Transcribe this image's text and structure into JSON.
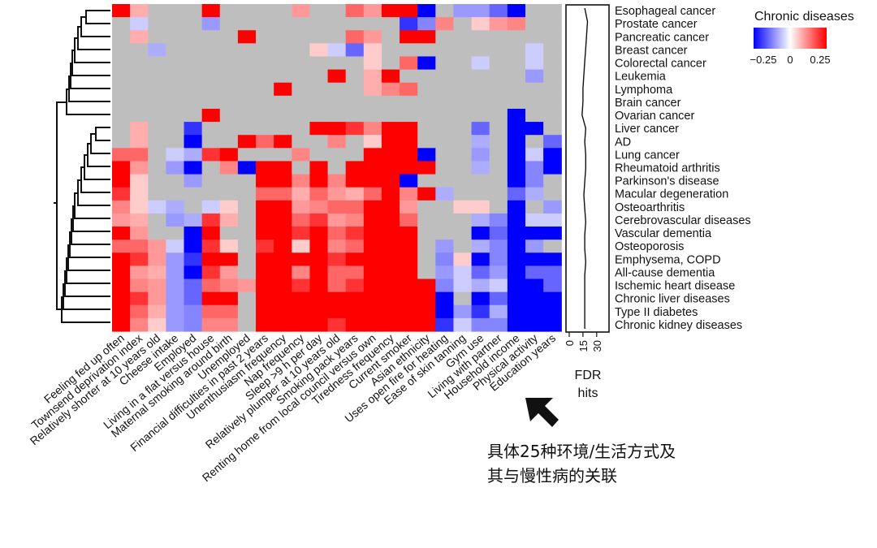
{
  "chart_data": {
    "type": "heatmap",
    "rows": [
      "Esophageal cancer",
      "Prostate cancer",
      "Pancreatic cancer",
      "Breast cancer",
      "Colorectal cancer",
      "Leukemia",
      "Lymphoma",
      "Brain cancer",
      "Ovarian cancer",
      "Liver cancer",
      "AD",
      "Lung cancer",
      "Rheumatoid arthritis",
      "Parkinson's disease",
      "Macular degeneration",
      "Osteoarthritis",
      "Cerebrovascular diseases",
      "Vascular dementia",
      "Osteoporosis",
      "Emphysema, COPD",
      "All-cause dementia",
      "Ischemic heart disease",
      "Chronic liver diseases",
      "Type II diabetes",
      "Chronic kidney diseases"
    ],
    "columns": [
      "Feeling fed up often",
      "Townsend deprivation index",
      "Relatively shorter at 10 years old",
      "Cheese intake",
      "Employed",
      "Living in a flat versus house",
      "Maternal smoking around birth",
      "Unemployed",
      "Financial difficulties in past 2 years",
      "Unenthusiasm frequency",
      "Nap frequency",
      "Sleep >9 h per day",
      "Relatively plumper at 10 years old",
      "Smoking pack years",
      "Renting home from local council versus own",
      "Tiredness frequency",
      "Current smoker",
      "Asian ethnicity",
      "Uses open fire for heating",
      "Ease of skin tanning",
      "Gym use",
      "Living with partner",
      "Household income",
      "Physical activity",
      "Education years"
    ],
    "values": [
      [
        0.25,
        0.08,
        null,
        null,
        null,
        0.25,
        null,
        null,
        null,
        null,
        0.1,
        null,
        null,
        0.15,
        0.1,
        0.25,
        0.25,
        -0.25,
        null,
        -0.1,
        -0.1,
        -0.15,
        -0.25,
        null,
        null
      ],
      [
        null,
        -0.05,
        null,
        null,
        null,
        -0.1,
        null,
        null,
        null,
        null,
        null,
        null,
        null,
        null,
        null,
        null,
        -0.2,
        -0.12,
        0.12,
        null,
        0.05,
        0.1,
        0.12,
        null,
        null
      ],
      [
        null,
        0.08,
        null,
        null,
        null,
        null,
        null,
        0.25,
        null,
        null,
        null,
        null,
        null,
        0.15,
        0.1,
        null,
        0.25,
        0.25,
        null,
        null,
        null,
        null,
        null,
        null,
        null
      ],
      [
        null,
        null,
        -0.08,
        null,
        null,
        null,
        null,
        null,
        null,
        null,
        null,
        0.05,
        -0.05,
        -0.15,
        0.05,
        null,
        null,
        null,
        null,
        null,
        null,
        null,
        null,
        -0.05,
        null
      ],
      [
        null,
        null,
        null,
        null,
        null,
        null,
        null,
        null,
        null,
        null,
        null,
        null,
        null,
        null,
        0.05,
        null,
        0.15,
        -0.25,
        null,
        null,
        -0.05,
        null,
        null,
        -0.05,
        null
      ],
      [
        null,
        null,
        null,
        null,
        null,
        null,
        null,
        null,
        null,
        null,
        null,
        null,
        0.25,
        null,
        0.08,
        0.25,
        null,
        null,
        null,
        null,
        null,
        null,
        null,
        -0.1,
        null
      ],
      [
        null,
        null,
        null,
        null,
        null,
        null,
        null,
        null,
        null,
        0.25,
        null,
        null,
        null,
        null,
        0.08,
        0.12,
        0.15,
        null,
        null,
        null,
        null,
        null,
        null,
        null,
        null
      ],
      [
        null,
        null,
        null,
        null,
        null,
        null,
        null,
        null,
        null,
        null,
        null,
        null,
        null,
        null,
        null,
        null,
        null,
        null,
        null,
        null,
        null,
        null,
        null,
        null,
        null
      ],
      [
        null,
        null,
        null,
        null,
        null,
        0.25,
        null,
        null,
        null,
        null,
        null,
        null,
        null,
        null,
        null,
        null,
        null,
        null,
        null,
        null,
        null,
        null,
        -0.25,
        null,
        null
      ],
      [
        null,
        0.08,
        null,
        null,
        -0.2,
        null,
        null,
        null,
        null,
        null,
        null,
        0.25,
        0.25,
        0.2,
        0.12,
        0.25,
        0.25,
        null,
        null,
        null,
        -0.15,
        null,
        -0.25,
        -0.25,
        null
      ],
      [
        null,
        0.08,
        null,
        null,
        -0.25,
        null,
        null,
        0.25,
        0.15,
        0.25,
        null,
        null,
        0.12,
        null,
        0.05,
        0.25,
        0.25,
        null,
        null,
        null,
        -0.08,
        null,
        -0.25,
        null,
        -0.15
      ],
      [
        0.15,
        0.15,
        null,
        -0.05,
        -0.08,
        0.2,
        0.25,
        null,
        null,
        null,
        0.12,
        null,
        null,
        null,
        0.25,
        0.25,
        0.25,
        -0.25,
        null,
        null,
        -0.1,
        null,
        -0.25,
        -0.05,
        -0.25
      ],
      [
        0.25,
        0.1,
        null,
        -0.1,
        -0.25,
        null,
        0.12,
        -0.25,
        0.25,
        0.25,
        null,
        0.25,
        null,
        0.25,
        0.25,
        0.25,
        0.25,
        0.25,
        null,
        null,
        -0.08,
        null,
        -0.25,
        -0.12,
        -0.25
      ],
      [
        0.25,
        0.05,
        null,
        null,
        -0.1,
        null,
        null,
        null,
        0.25,
        0.25,
        0.12,
        0.25,
        0.12,
        0.25,
        0.25,
        0.25,
        -0.25,
        null,
        null,
        null,
        null,
        null,
        -0.25,
        -0.12,
        null
      ],
      [
        0.2,
        0.05,
        null,
        null,
        null,
        null,
        null,
        null,
        0.15,
        0.15,
        0.08,
        0.15,
        0.1,
        0.08,
        0.15,
        0.25,
        0.12,
        0.25,
        -0.08,
        null,
        null,
        null,
        -0.15,
        -0.08,
        null
      ],
      [
        0.12,
        0.05,
        -0.05,
        -0.08,
        null,
        -0.05,
        0.05,
        null,
        0.25,
        0.25,
        0.1,
        0.12,
        0.15,
        0.15,
        0.25,
        0.25,
        0.1,
        null,
        null,
        0.05,
        0.05,
        null,
        -0.25,
        null,
        -0.1
      ],
      [
        0.1,
        0.08,
        null,
        -0.1,
        -0.08,
        0.2,
        0.08,
        null,
        0.25,
        0.25,
        0.15,
        0.2,
        0.1,
        0.12,
        0.25,
        0.25,
        0.15,
        null,
        null,
        null,
        -0.08,
        -0.12,
        -0.25,
        -0.05,
        -0.05
      ],
      [
        0.25,
        0.1,
        null,
        null,
        -0.25,
        0.25,
        null,
        null,
        0.25,
        0.25,
        0.2,
        0.25,
        0.15,
        0.2,
        0.25,
        0.25,
        0.25,
        null,
        null,
        null,
        -0.25,
        -0.15,
        -0.25,
        -0.25,
        -0.25
      ],
      [
        0.15,
        0.15,
        0.1,
        -0.05,
        -0.25,
        0.2,
        0.05,
        null,
        0.2,
        0.25,
        0.05,
        0.25,
        0.12,
        0.15,
        0.25,
        0.25,
        0.25,
        null,
        -0.1,
        null,
        -0.08,
        -0.12,
        -0.25,
        -0.1,
        null
      ],
      [
        0.25,
        0.2,
        0.1,
        -0.1,
        -0.2,
        0.25,
        0.25,
        null,
        0.25,
        0.25,
        0.25,
        0.25,
        0.2,
        0.25,
        0.25,
        0.25,
        0.25,
        null,
        -0.12,
        0.05,
        -0.25,
        -0.12,
        -0.25,
        -0.25,
        -0.25
      ],
      [
        0.25,
        0.1,
        0.08,
        -0.1,
        -0.25,
        0.2,
        0.1,
        null,
        0.25,
        0.25,
        0.12,
        0.25,
        0.15,
        0.15,
        0.25,
        0.25,
        0.25,
        null,
        -0.1,
        -0.05,
        -0.15,
        -0.1,
        -0.25,
        -0.15,
        -0.15
      ],
      [
        0.25,
        0.12,
        0.1,
        -0.1,
        -0.15,
        0.15,
        0.12,
        0.1,
        0.25,
        0.25,
        0.2,
        0.25,
        0.15,
        0.2,
        0.25,
        0.25,
        0.25,
        0.25,
        -0.12,
        -0.05,
        -0.08,
        -0.05,
        -0.25,
        -0.25,
        -0.15
      ],
      [
        0.25,
        0.2,
        0.1,
        -0.1,
        -0.15,
        0.25,
        0.25,
        null,
        0.25,
        0.25,
        0.25,
        0.25,
        0.25,
        0.25,
        0.25,
        0.25,
        0.25,
        0.25,
        -0.25,
        null,
        -0.25,
        -0.15,
        -0.25,
        -0.25,
        -0.25
      ],
      [
        0.25,
        0.15,
        0.08,
        -0.1,
        -0.12,
        0.15,
        0.15,
        null,
        0.25,
        0.25,
        0.25,
        0.25,
        0.25,
        0.25,
        0.25,
        0.25,
        0.25,
        0.25,
        -0.25,
        -0.1,
        -0.2,
        -0.08,
        -0.25,
        -0.25,
        -0.25
      ],
      [
        0.25,
        0.12,
        0.05,
        -0.1,
        -0.12,
        0.12,
        0.12,
        null,
        0.25,
        0.25,
        0.25,
        0.25,
        0.2,
        0.25,
        0.25,
        0.25,
        0.25,
        0.25,
        -0.2,
        -0.05,
        -0.12,
        -0.12,
        -0.25,
        -0.25,
        -0.25
      ]
    ],
    "color_scale": {
      "min": -0.25,
      "mid": 0,
      "max": 0.25,
      "low_color": "#0000ff",
      "mid_color": "#ffffff",
      "high_color": "#ff0000",
      "na_color": "#bebebe"
    },
    "legend": {
      "title": "Chronic diseases",
      "ticks": [
        "−0.25",
        "0",
        "0.25"
      ],
      "position": "top-right"
    },
    "side_panel": {
      "x_ticks": [
        "0",
        "15",
        "30"
      ],
      "xlabel": [
        "FDR",
        "hits"
      ],
      "xlim": [
        0,
        40
      ],
      "fdr_hits": [
        17,
        20,
        19,
        18,
        17,
        16,
        15,
        15,
        14,
        18,
        17,
        18,
        18,
        17,
        16,
        17,
        18,
        17,
        17,
        18,
        17,
        17,
        17,
        17,
        17
      ]
    }
  },
  "annotation": {
    "arrow": "arrow-icon",
    "lines": [
      "具体25种环境/生活方式及",
      "其与慢性病的关联"
    ]
  }
}
